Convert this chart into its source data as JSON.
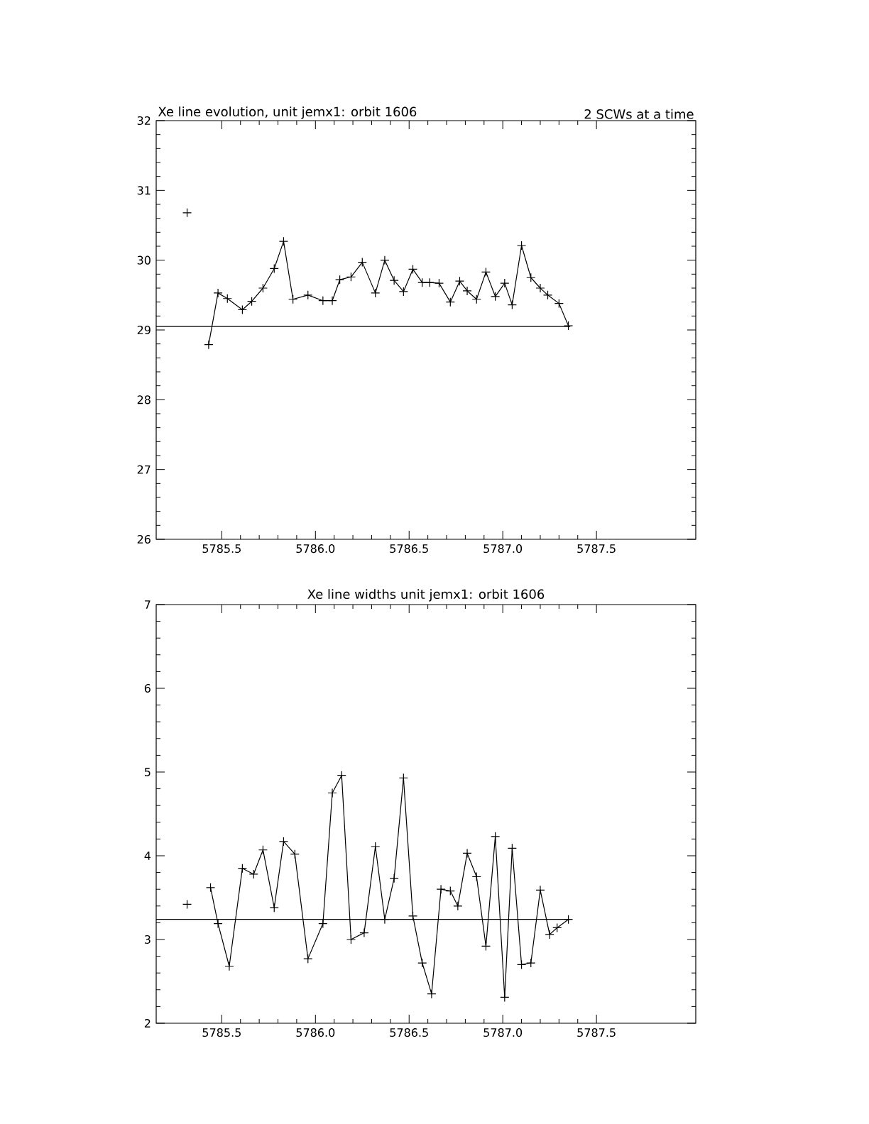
{
  "chart_data": [
    {
      "type": "line",
      "title": "Xe line evolution, unit jemx1: orbit 1606",
      "subtitle": "2 SCWs at a time",
      "marker": "cross",
      "line_style": "solid",
      "grid": false,
      "xlim": [
        5785.15,
        5788.03
      ],
      "ylim": [
        26,
        32
      ],
      "xticks": [
        {
          "value": 5785.5,
          "label": "5785.5"
        },
        {
          "value": 5786,
          "label": "5786.0"
        },
        {
          "value": 5786.5,
          "label": "5786.5"
        },
        {
          "value": 5787,
          "label": "5787.0"
        },
        {
          "value": 5787.5,
          "label": "5787.5"
        }
      ],
      "yticks": [
        26,
        27,
        28,
        29,
        30,
        31,
        32
      ],
      "series": [
        {
          "color": "#000000",
          "x": [
            5785.315,
            5785.37,
            5785.43,
            5785.48,
            5785.53,
            5785.61,
            5785.66,
            5785.72,
            5785.78,
            5785.83,
            5785.88,
            5785.96,
            5786.04,
            5786.09,
            5786.13,
            5786.19,
            5786.25,
            5786.32,
            5786.37,
            5786.42,
            5786.47,
            5786.52,
            5786.57,
            5786.61,
            5786.66,
            5786.72,
            5786.77,
            5786.81,
            5786.86,
            5786.91,
            5786.96,
            5787.01,
            5787.05,
            5787.1,
            5787.15,
            5787.2,
            5787.24,
            5787.3,
            5787.35
          ],
          "values": [
            30.68,
            null,
            28.79,
            29.53,
            29.45,
            29.29,
            29.41,
            29.6,
            29.88,
            30.27,
            29.44,
            29.5,
            29.42,
            29.42,
            29.72,
            29.76,
            29.97,
            29.53,
            30.0,
            29.71,
            29.55,
            29.87,
            29.68,
            29.68,
            29.67,
            29.4,
            29.7,
            29.56,
            29.44,
            29.83,
            29.48,
            29.67,
            29.36,
            30.21,
            29.75,
            29.6,
            29.5,
            29.38,
            29.06
          ]
        },
        {
          "color": "#000000",
          "marker": "none",
          "x": [
            5785.15,
            5787.36
          ],
          "values": [
            29.05,
            29.05
          ]
        }
      ]
    },
    {
      "type": "line",
      "title": "Xe line widths unit jemx1: orbit 1606",
      "marker": "cross",
      "line_style": "solid",
      "grid": false,
      "xlim": [
        5785.15,
        5788.03
      ],
      "ylim": [
        2,
        7
      ],
      "xticks": [
        {
          "value": 5785.5,
          "label": "5785.5"
        },
        {
          "value": 5786,
          "label": "5786.0"
        },
        {
          "value": 5786.5,
          "label": "5786.5"
        },
        {
          "value": 5787,
          "label": "5787.0"
        },
        {
          "value": 5787.5,
          "label": "5787.5"
        }
      ],
      "yticks": [
        2,
        3,
        4,
        5,
        6,
        7
      ],
      "series": [
        {
          "color": "#000000",
          "x": [
            5785.315,
            5785.37,
            5785.44,
            5785.48,
            5785.54,
            5785.61,
            5785.67,
            5785.72,
            5785.78,
            5785.83,
            5785.89,
            5785.96,
            5786.04,
            5786.09,
            5786.14,
            5786.19,
            5786.26,
            5786.32,
            5786.37,
            5786.42,
            5786.47,
            5786.52,
            5786.57,
            5786.62,
            5786.67,
            5786.72,
            5786.76,
            5786.81,
            5786.86,
            5786.91,
            5786.96,
            5787.01,
            5787.05,
            5787.1,
            5787.15,
            5787.2,
            5787.25,
            5787.29,
            5787.35
          ],
          "values": [
            3.42,
            null,
            3.62,
            3.19,
            2.68,
            3.85,
            3.78,
            4.07,
            3.38,
            4.17,
            4.02,
            2.77,
            3.19,
            4.75,
            4.96,
            3.0,
            3.08,
            4.11,
            3.24,
            3.73,
            4.93,
            3.28,
            2.72,
            2.35,
            3.6,
            3.58,
            3.4,
            4.03,
            3.75,
            2.92,
            4.23,
            2.31,
            4.09,
            2.7,
            2.72,
            3.59,
            3.06,
            3.14,
            3.24
          ]
        },
        {
          "color": "#000000",
          "marker": "none",
          "x": [
            5785.15,
            5787.36
          ],
          "values": [
            3.24,
            3.24
          ]
        }
      ]
    }
  ]
}
